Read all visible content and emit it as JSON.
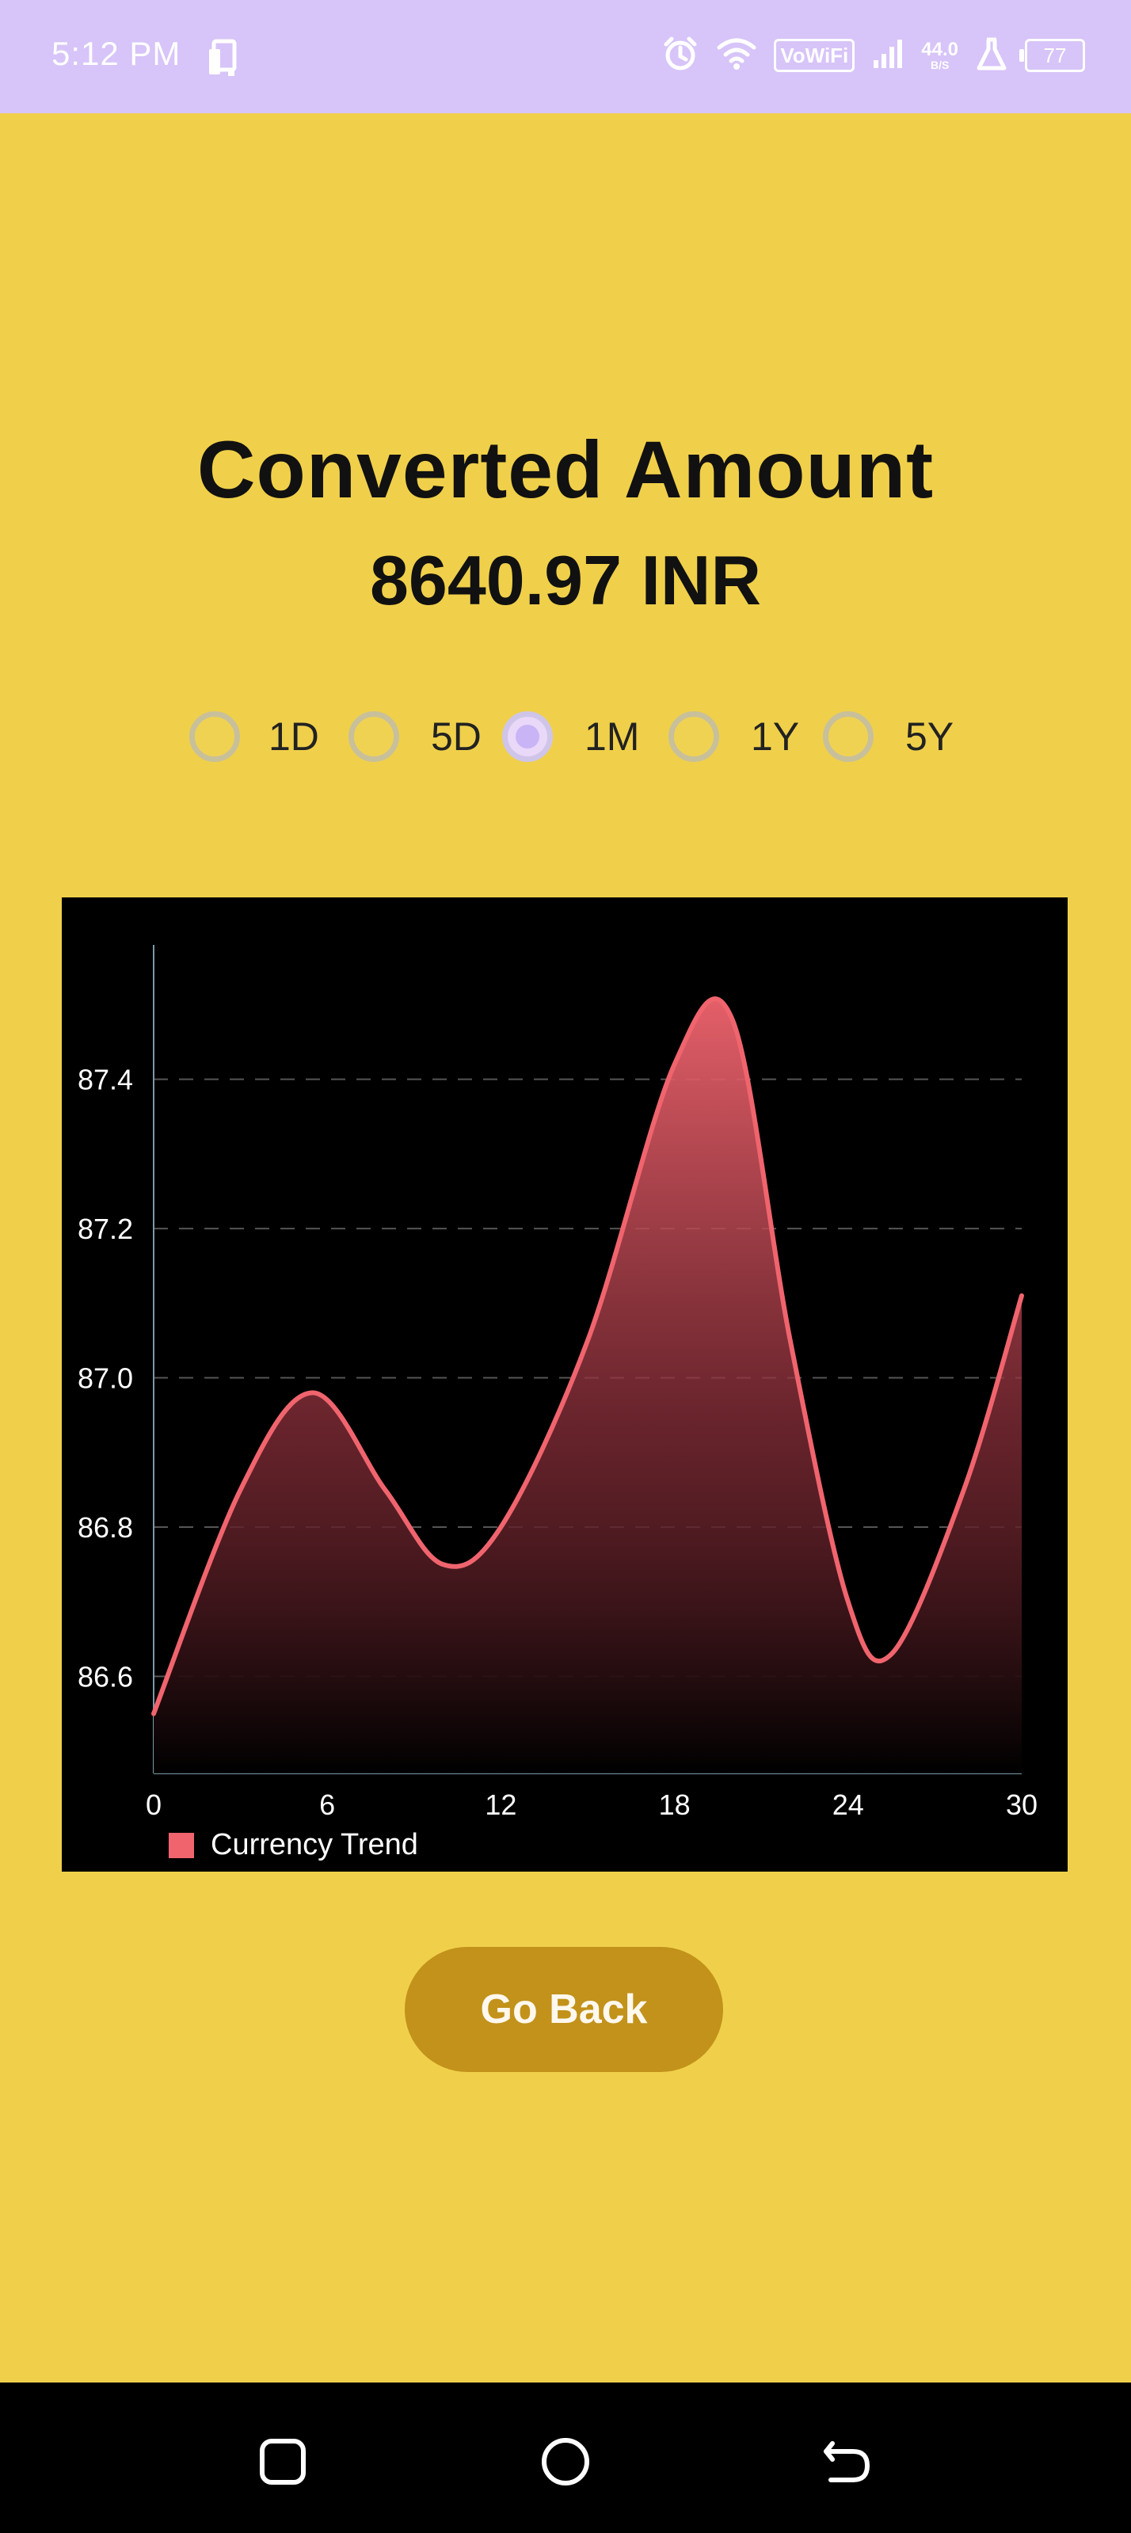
{
  "status_bar": {
    "time": "5:12 PM",
    "network_badge": "VoWiFi",
    "speed_value": "44.0",
    "speed_unit": "B/S",
    "battery_level": "77",
    "icons": [
      "sim-card-icon",
      "alarm-icon",
      "wifi-icon",
      "vowifi-icon",
      "signal-icon",
      "data-speed-icon",
      "flask-icon",
      "battery-icon"
    ]
  },
  "header": {
    "title": "Converted Amount",
    "amount": "8640.97 INR"
  },
  "range_selector": {
    "options": [
      {
        "label": "1D",
        "selected": false
      },
      {
        "label": "5D",
        "selected": false
      },
      {
        "label": "1M",
        "selected": true
      },
      {
        "label": "1Y",
        "selected": false
      },
      {
        "label": "5Y",
        "selected": false
      }
    ]
  },
  "chart_data": {
    "type": "area",
    "title": "",
    "xlabel": "",
    "ylabel": "",
    "x_ticks": [
      "0",
      "6",
      "12",
      "18",
      "24",
      "30"
    ],
    "y_ticks": [
      "86.6",
      "86.8",
      "87.0",
      "87.2",
      "87.4"
    ],
    "xlim": [
      0,
      30
    ],
    "ylim": [
      86.47,
      87.58
    ],
    "grid": "horizontal dashed",
    "legend_position": "bottom-left",
    "series": [
      {
        "name": "Currency Trend",
        "color": "#f0646e",
        "x": [
          0,
          3,
          5.5,
          8,
          10,
          12,
          15,
          18,
          20,
          22,
          24,
          25.5,
          28,
          30
        ],
        "y": [
          86.55,
          86.85,
          86.98,
          86.85,
          86.75,
          86.8,
          87.05,
          87.42,
          87.48,
          87.05,
          86.7,
          86.63,
          86.85,
          87.11
        ]
      }
    ],
    "colors": {
      "background": "#000000",
      "line": "#f0646e",
      "axis": "#7a9aa8",
      "grid": "#555555",
      "tick_label": "#ffffff"
    }
  },
  "actions": {
    "go_back_label": "Go Back"
  },
  "navigation": {
    "icons": [
      "recent-apps-icon",
      "home-icon",
      "back-icon"
    ]
  },
  "colors": {
    "page_background": "#f0d04a",
    "status_bar": "#d7c4f8",
    "button": "#c2921a",
    "radio_selected": "#c9b4f6"
  }
}
